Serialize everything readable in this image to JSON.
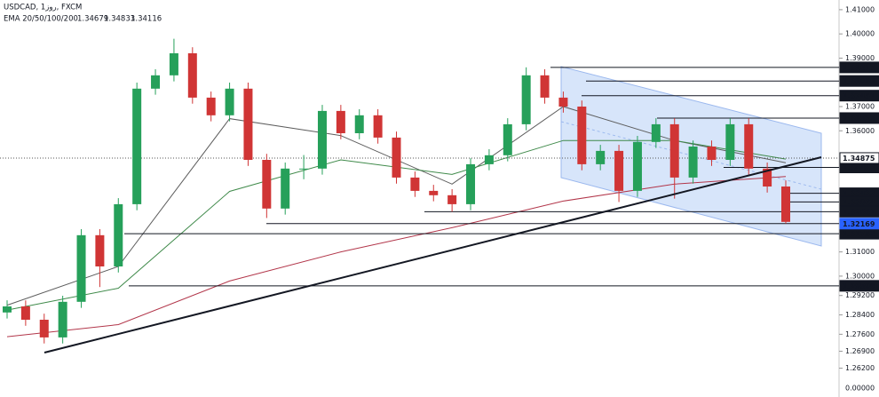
{
  "chart_data": {
    "type": "candlestick",
    "symbol_line": "USDCAD, 1روز, FXCM",
    "indicator_name": "EMA 20/50/100/200",
    "ylim": [
      1.2501,
      1.414
    ],
    "yticks": [
      {
        "value": 1.41,
        "label": "1.41000"
      },
      {
        "value": 1.4,
        "label": "1.40000"
      },
      {
        "value": 1.39,
        "label": "1.39000"
      },
      {
        "value": 1.37,
        "label": "1.37000"
      },
      {
        "value": 1.36,
        "label": "1.36000"
      },
      {
        "value": 1.31,
        "label": "1.31000"
      },
      {
        "value": 1.3,
        "label": "1.30000"
      },
      {
        "value": 1.292,
        "label": "1.29200"
      },
      {
        "value": 1.284,
        "label": "1.28400"
      },
      {
        "value": 1.276,
        "label": "1.27600"
      },
      {
        "value": 1.269,
        "label": "1.26900"
      },
      {
        "value": 1.262,
        "label": "1.26200"
      }
    ],
    "scale_bottom_label": "0.00000",
    "up_color": "#26a05a",
    "down_color": "#d03535",
    "open": [
      1.285,
      1.2875,
      1.282,
      1.2747,
      1.2894,
      1.3169,
      1.304,
      1.3297,
      1.3774,
      1.3829,
      1.392,
      1.3737,
      1.3664,
      1.3774,
      1.348,
      1.3279,
      1.3444,
      1.3444,
      1.3682,
      1.359,
      1.3664,
      1.3572,
      1.3407,
      1.3352,
      1.3334,
      1.3297,
      1.3462,
      1.3499,
      1.3627,
      1.3829,
      1.3737,
      1.37,
      1.3462,
      1.3517,
      1.3352,
      1.3554,
      1.3627,
      1.3407,
      1.3535,
      1.348,
      1.3627,
      1.3444,
      1.337
    ],
    "high": [
      1.29,
      1.29,
      1.2845,
      1.2919,
      1.3194,
      1.3194,
      1.3322,
      1.3799,
      1.3854,
      1.398,
      1.3945,
      1.3762,
      1.3799,
      1.3799,
      1.3505,
      1.3469,
      1.35,
      1.3707,
      1.3707,
      1.3689,
      1.3689,
      1.3597,
      1.3432,
      1.3377,
      1.3359,
      1.3487,
      1.3524,
      1.3652,
      1.3862,
      1.3854,
      1.3762,
      1.3725,
      1.3542,
      1.3542,
      1.3579,
      1.3652,
      1.3652,
      1.356,
      1.356,
      1.3652,
      1.3652,
      1.3469,
      1.3395
    ],
    "low": [
      1.2825,
      1.2795,
      1.2722,
      1.2722,
      1.2869,
      1.2955,
      1.3015,
      1.3272,
      1.3749,
      1.3804,
      1.3712,
      1.3639,
      1.3639,
      1.3455,
      1.324,
      1.3254,
      1.34,
      1.3419,
      1.3565,
      1.3565,
      1.3547,
      1.3382,
      1.3327,
      1.3309,
      1.3266,
      1.3272,
      1.3437,
      1.3474,
      1.3602,
      1.3712,
      1.3675,
      1.3437,
      1.3437,
      1.3306,
      1.3327,
      1.3529,
      1.332,
      1.3382,
      1.3455,
      1.3455,
      1.3419,
      1.3345,
      1.3217
    ],
    "close": [
      1.2875,
      1.282,
      1.2747,
      1.2894,
      1.3169,
      1.304,
      1.3297,
      1.3774,
      1.3829,
      1.392,
      1.3737,
      1.3664,
      1.3774,
      1.348,
      1.3279,
      1.3444,
      1.3444,
      1.3682,
      1.359,
      1.3664,
      1.3572,
      1.3407,
      1.3352,
      1.3334,
      1.3297,
      1.3462,
      1.3499,
      1.3627,
      1.3829,
      1.3737,
      1.37,
      1.3462,
      1.3517,
      1.3352,
      1.3554,
      1.3627,
      1.3407,
      1.3535,
      1.348,
      1.3627,
      1.3444,
      1.337,
      1.3224
    ],
    "ema": {
      "x": [
        0,
        6,
        12,
        18,
        24,
        30,
        36,
        42
      ],
      "series": [
        {
          "color": "#5d5d5d",
          "values": [
            1.288,
            1.304,
            1.365,
            1.358,
            1.338,
            1.37,
            1.356,
            1.34679
          ],
          "last_label": "1.34679"
        },
        {
          "color": "#3f8a4a",
          "values": [
            1.286,
            1.295,
            1.335,
            1.348,
            1.342,
            1.356,
            1.356,
            1.34833
          ],
          "last_label": "1.34833"
        },
        {
          "color": "#b2364a",
          "values": [
            1.275,
            1.28,
            1.298,
            1.31,
            1.32,
            1.331,
            1.338,
            1.34116
          ],
          "last_label": "1.34116"
        }
      ]
    },
    "levels": [
      1.38617,
      1.38056,
      1.37451,
      1.36525,
      1.34488,
      1.33422,
      1.33064,
      1.32661,
      1.31753,
      1.29599
    ],
    "current_price": 1.34875,
    "last_price": 1.32169,
    "last_price_color": "#2962ff"
  }
}
